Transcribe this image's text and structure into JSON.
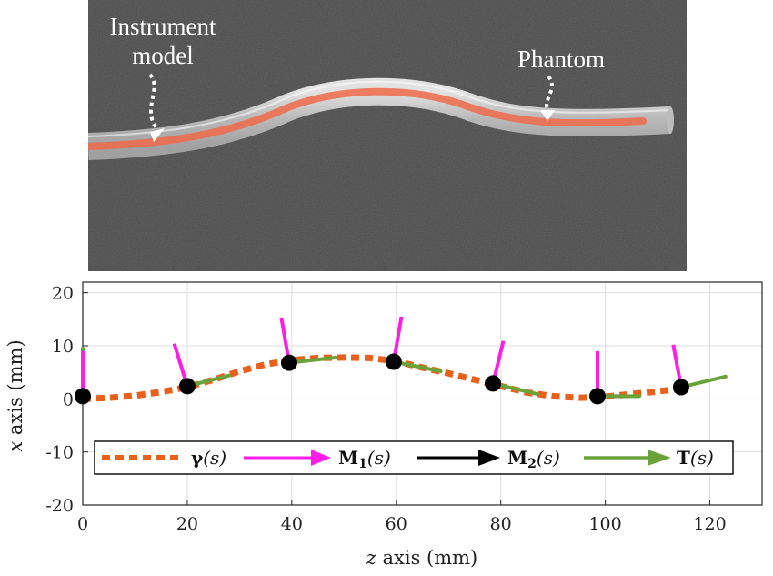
{
  "photo": {
    "labels": {
      "instrument_line1": "Instrument",
      "instrument_line2": "model",
      "phantom": "Phantom"
    },
    "colors": {
      "background": "#4a4a4a",
      "tube": "#d6d6d6",
      "instrument": "#f06a4a"
    }
  },
  "chart_data": {
    "type": "line",
    "xlabel_var": "z",
    "xlabel_rest": " axis (mm)",
    "ylabel_var": "x",
    "ylabel_rest": " axis (mm)",
    "xlim": [
      0,
      130
    ],
    "ylim": [
      -20,
      22
    ],
    "xticks": [
      0,
      20,
      40,
      60,
      80,
      100,
      120
    ],
    "yticks": [
      20,
      10,
      0,
      -10,
      -20
    ],
    "xtick_labels": [
      "0",
      "20",
      "40",
      "60",
      "80",
      "100",
      "120"
    ],
    "ytick_labels": [
      "20",
      "10",
      "0",
      "-10",
      "-20"
    ],
    "grid": true,
    "legend_position": "bottom-center",
    "curve": {
      "x": [
        0,
        5,
        10,
        15,
        20,
        25,
        30,
        35,
        40,
        45,
        50,
        55,
        60,
        65,
        70,
        75,
        80,
        85,
        90,
        95,
        100,
        105,
        110,
        115
      ],
      "y": [
        0,
        0.2,
        0.6,
        1.3,
        2.2,
        3.6,
        5.2,
        6.5,
        7.3,
        7.7,
        7.8,
        7.7,
        7.1,
        5.9,
        4.8,
        3.6,
        2.4,
        1.2,
        0.5,
        0.2,
        0.4,
        0.9,
        1.4,
        2.0
      ]
    },
    "frames": [
      {
        "z": 0,
        "x": 0.5,
        "M1": [
          0,
          8.5
        ],
        "T": [
          0,
          9
        ]
      },
      {
        "z": 20,
        "x": 2.4,
        "M1": [
          -2.5,
          8
        ],
        "T": [
          8,
          2
        ]
      },
      {
        "z": 39.5,
        "x": 6.8,
        "M1": [
          -1.5,
          8.5
        ],
        "T": [
          9,
          1
        ]
      },
      {
        "z": 59.5,
        "x": 7,
        "M1": [
          1.5,
          8.5
        ],
        "T": [
          9,
          -1.8
        ]
      },
      {
        "z": 78.5,
        "x": 2.9,
        "M1": [
          2,
          8
        ],
        "T": [
          8.5,
          -2
        ]
      },
      {
        "z": 98.5,
        "x": 0.5,
        "M1": [
          0,
          8.5
        ],
        "T": [
          8,
          0
        ]
      },
      {
        "z": 114.5,
        "x": 2.2,
        "M1": [
          -1.5,
          8
        ],
        "T": [
          8.5,
          2
        ]
      }
    ],
    "legend": [
      {
        "symbol": "γ",
        "arg": "(s)",
        "style": "dotted",
        "color": "#e8601c"
      },
      {
        "symbol": "M",
        "sub": "1",
        "arg": "(s)",
        "style": "arrow",
        "color": "#ff1ee6"
      },
      {
        "symbol": "M",
        "sub": "2",
        "arg": "(s)",
        "style": "arrow",
        "color": "#000000"
      },
      {
        "symbol": "T",
        "arg": "(s)",
        "style": "arrow",
        "color": "#6aa33a"
      }
    ],
    "colors": {
      "gamma": "#e8601c",
      "M1": "#ff1ee6",
      "M2": "#000000",
      "T": "#6aa33a",
      "grid": "#dedede"
    }
  }
}
